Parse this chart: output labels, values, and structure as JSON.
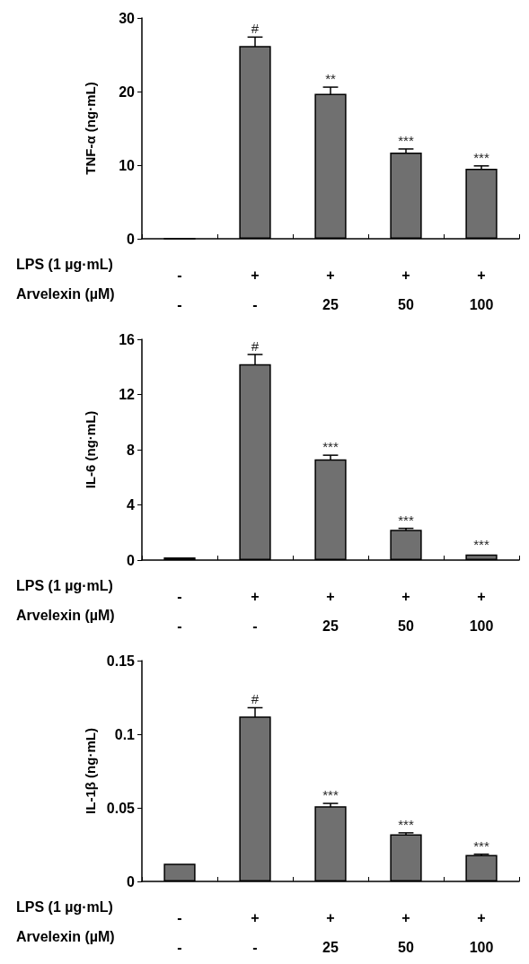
{
  "chart_data": [
    {
      "type": "bar",
      "ylabel": "TNF-α (ng·mL)",
      "categories": [
        "-\n-",
        "+\n-",
        "+\n25",
        "+\n50",
        "+\n100"
      ],
      "values": [
        0,
        26.2,
        19.7,
        11.7,
        9.5
      ],
      "errors": [
        null,
        1.2,
        0.9,
        0.5,
        0.4
      ],
      "color": "#707070",
      "ylim": [
        0,
        30
      ],
      "yticks": [
        0,
        10,
        20,
        30
      ],
      "grid": false,
      "annotations": [
        "LPS (1 µg·mL)",
        "Arvelexin (µM)",
        {
          "text": "#",
          "x": "+\n-",
          "y": 27.4
        },
        {
          "text": "**",
          "x": "+\n25",
          "y": 20.6
        },
        {
          "text": "***",
          "x": "+\n50",
          "y": 12.2
        },
        {
          "text": "***",
          "x": "+\n100",
          "y": 9.9
        }
      ]
    },
    {
      "type": "bar",
      "ylabel": "IL-6 (ng·mL)",
      "categories": [
        "-\n-",
        "+\n-",
        "+\n25",
        "+\n50",
        "+\n100"
      ],
      "values": [
        0.2,
        14.2,
        7.3,
        2.2,
        0.4
      ],
      "errors": [
        null,
        0.7,
        0.3,
        0.1,
        null
      ],
      "color": "#707070",
      "ylim": [
        0,
        16
      ],
      "yticks": [
        0,
        4,
        8,
        12,
        16
      ],
      "grid": false,
      "annotations": [
        "LPS (1 µg·mL)",
        "Arvelexin (µM)",
        {
          "text": "#",
          "x": "+\n-",
          "y": 14.9
        },
        {
          "text": "***",
          "x": "+\n25",
          "y": 7.6
        },
        {
          "text": "***",
          "x": "+\n50",
          "y": 2.3
        },
        {
          "text": "***",
          "x": "+\n100",
          "y": 0.5
        }
      ]
    },
    {
      "type": "bar",
      "ylabel": "IL-1β (ng·mL)",
      "categories": [
        "-\n-",
        "+\n-",
        "+\n25",
        "+\n50",
        "+\n100"
      ],
      "values": [
        0.012,
        0.112,
        0.051,
        0.032,
        0.018
      ],
      "errors": [
        null,
        0.006,
        0.002,
        0.001,
        0.0005
      ],
      "color": "#707070",
      "ylim": [
        0,
        0.15
      ],
      "yticks": [
        0,
        0.05,
        0.1,
        0.15
      ],
      "grid": false,
      "annotations": [
        "LPS (1 µg·mL)",
        "Arvelexin (µM)",
        {
          "text": "#",
          "x": "+\n-",
          "y": 0.118
        },
        {
          "text": "***",
          "x": "+\n25",
          "y": 0.053
        },
        {
          "text": "***",
          "x": "+\n50",
          "y": 0.033
        },
        {
          "text": "***",
          "x": "+\n100",
          "y": 0.0185
        }
      ]
    }
  ]
}
